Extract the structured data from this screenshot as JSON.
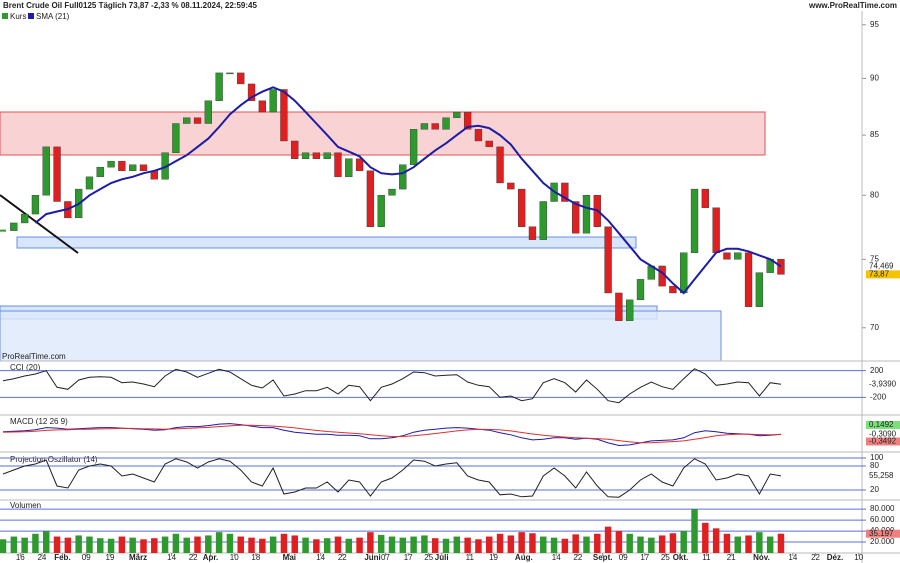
{
  "header": {
    "title": "Brent Crude Oil Full0125 Täglich 73,87 -2,33 % 08.11.2024, 22:59:45",
    "site": "www.ProRealTime.com",
    "watermark": "ProRealTime.com"
  },
  "chart_data": [
    {
      "type": "candlestick",
      "log": true,
      "ylim": [
        67.9,
        97.4
      ],
      "yticks": [
        95,
        90,
        85,
        80,
        75,
        70
      ],
      "xlim": [
        -0.28,
        79.5
      ],
      "series": [
        {
          "name": "Kurs",
          "color": "#2e9a2e",
          "down_color": "#e02020",
          "values": [
            77.2,
            77.8,
            78.5,
            80,
            84,
            79.5,
            78.2,
            80.5,
            81.5,
            82.3,
            82.8,
            82,
            82.5,
            82,
            81.3,
            83.5,
            86,
            86.5,
            86,
            88,
            90.5,
            90.5,
            89.5,
            88,
            87,
            89,
            84.5,
            83,
            83.5,
            83,
            83.5,
            81.5,
            83,
            82,
            77.5,
            80,
            80.5,
            82.5,
            85.5,
            86,
            85.5,
            86.5,
            87,
            85.5,
            84.5,
            84,
            81,
            80.5,
            77.5,
            76.5,
            79.5,
            81,
            79.5,
            77,
            80,
            77.5,
            72.5,
            70.5,
            72,
            73.5,
            74.5,
            73,
            72.5,
            75.5,
            80.5,
            79,
            75.5,
            75,
            75.5,
            71.5,
            74,
            75,
            73.87
          ]
        },
        {
          "name": "SMA (21)",
          "color": "#1c1ca8",
          "values": [
            null,
            null,
            null,
            77.8,
            78.5,
            78.7,
            78.9,
            79.3,
            80,
            80.5,
            81,
            81.3,
            81.5,
            81.8,
            82,
            82.3,
            82.8,
            83.3,
            84,
            84.7,
            85.7,
            86.8,
            87.6,
            88.3,
            88.8,
            89.2,
            88.8,
            88,
            87,
            86,
            85,
            84,
            83.6,
            83.2,
            82.3,
            81.8,
            81.7,
            81.8,
            82.3,
            83,
            83.7,
            84.3,
            85,
            85.7,
            85.8,
            85.6,
            85,
            84.2,
            83,
            82,
            81,
            80.3,
            79.8,
            79.3,
            79,
            78.8,
            78,
            77,
            76,
            75,
            74.5,
            74,
            73.2,
            72.5,
            73.5,
            74.5,
            75.5,
            75.8,
            75.8,
            75.6,
            75.3,
            75,
            74.469
          ]
        }
      ],
      "price_labels": [
        {
          "value": 74.469,
          "label": "74,469",
          "color": "#ffffff"
        },
        {
          "value": 73.87,
          "label": "73,87",
          "color": "#f5c400"
        }
      ]
    },
    {
      "type": "line",
      "title": "CCI (20)",
      "ylim": [
        -300,
        300
      ],
      "yticks": [
        200,
        -200
      ],
      "xlim": [
        -0.28,
        79.5
      ],
      "series": [
        {
          "name": "CCI",
          "color": "#222222",
          "values": [
            50,
            80,
            120,
            150,
            200,
            -50,
            -80,
            60,
            100,
            110,
            100,
            20,
            30,
            0,
            -40,
            120,
            220,
            180,
            100,
            160,
            220,
            180,
            80,
            -20,
            -60,
            60,
            -180,
            -150,
            -100,
            -100,
            -50,
            -150,
            -20,
            -40,
            -250,
            -50,
            0,
            80,
            180,
            170,
            120,
            130,
            140,
            30,
            -20,
            -40,
            -200,
            -180,
            -250,
            -220,
            20,
            80,
            20,
            -120,
            60,
            -80,
            -250,
            -280,
            -150,
            -50,
            30,
            -40,
            -80,
            80,
            230,
            150,
            -20,
            0,
            30,
            20,
            -180,
            20,
            -3.939
          ]
        }
      ],
      "price_labels": [
        {
          "value": -3.939,
          "label": "-3,9390",
          "color": "#ffffff"
        }
      ]
    },
    {
      "type": "line",
      "title": "MACD (12 26 9)",
      "ylim": [
        -3,
        2.5
      ],
      "yticks": [],
      "xlim": [
        -0.28,
        79.5
      ],
      "series": [
        {
          "name": "MACD",
          "color": "#1c1ca8",
          "values": [
            0.2,
            0.3,
            0.4,
            0.6,
            1.0,
            0.9,
            0.7,
            0.8,
            0.9,
            1.0,
            1.0,
            0.9,
            0.8,
            0.7,
            0.5,
            0.6,
            1.0,
            1.2,
            1.2,
            1.4,
            1.7,
            1.8,
            1.6,
            1.3,
            1.0,
            1.0,
            0.5,
            0.1,
            -0.1,
            -0.3,
            -0.3,
            -0.5,
            -0.5,
            -0.6,
            -1.2,
            -1.2,
            -1.0,
            -0.6,
            0.1,
            0.5,
            0.7,
            0.9,
            1.0,
            0.9,
            0.7,
            0.5,
            0,
            -0.4,
            -1.0,
            -1.4,
            -1.3,
            -1.0,
            -1.0,
            -1.3,
            -1.1,
            -1.3,
            -2.0,
            -2.5,
            -2.4,
            -2.0,
            -1.6,
            -1.5,
            -1.4,
            -1.0,
            0,
            0.4,
            0.2,
            -0.1,
            -0.2,
            -0.3,
            -0.6,
            -0.5,
            -0.309
          ]
        },
        {
          "name": "Signal",
          "color": "#e03030",
          "values": [
            0.1,
            0.15,
            0.2,
            0.3,
            0.45,
            0.55,
            0.6,
            0.65,
            0.7,
            0.75,
            0.8,
            0.85,
            0.85,
            0.8,
            0.75,
            0.7,
            0.75,
            0.85,
            0.95,
            1.05,
            1.2,
            1.35,
            1.45,
            1.45,
            1.4,
            1.3,
            1.15,
            0.95,
            0.7,
            0.45,
            0.25,
            0.1,
            -0.05,
            -0.2,
            -0.4,
            -0.6,
            -0.75,
            -0.75,
            -0.6,
            -0.4,
            -0.15,
            0.1,
            0.35,
            0.55,
            0.65,
            0.65,
            0.55,
            0.35,
            0.05,
            -0.25,
            -0.5,
            -0.7,
            -0.85,
            -1.0,
            -1.1,
            -1.15,
            -1.3,
            -1.55,
            -1.8,
            -1.95,
            -1.95,
            -1.85,
            -1.75,
            -1.6,
            -1.3,
            -0.95,
            -0.6,
            -0.4,
            -0.3,
            -0.3,
            -0.35,
            -0.4,
            -0.3492
          ]
        }
      ],
      "price_labels": [
        {
          "value": 0.1492,
          "label": "0,1492",
          "color": "#7be07b"
        },
        {
          "value": -0.309,
          "label": "-0,3090",
          "color": "#ffffff"
        },
        {
          "value": -0.3492,
          "label": "-0,3492",
          "color": "#f08080"
        }
      ]
    },
    {
      "type": "line",
      "title": "Projection Oszillator (14)",
      "ylim": [
        0,
        100
      ],
      "yticks": [
        100,
        80,
        20
      ],
      "xlim": [
        -0.28,
        79.5
      ],
      "series": [
        {
          "name": "PO",
          "color": "#222222",
          "values": [
            60,
            70,
            80,
            85,
            95,
            30,
            25,
            70,
            80,
            85,
            80,
            55,
            60,
            50,
            40,
            85,
            98,
            90,
            75,
            90,
            98,
            92,
            70,
            40,
            30,
            75,
            10,
            15,
            25,
            25,
            40,
            15,
            45,
            40,
            5,
            40,
            50,
            70,
            95,
            92,
            80,
            85,
            88,
            55,
            45,
            40,
            8,
            10,
            3,
            5,
            55,
            75,
            55,
            25,
            65,
            30,
            3,
            2,
            20,
            45,
            60,
            40,
            30,
            75,
            98,
            85,
            45,
            50,
            60,
            55,
            10,
            60,
            55.258
          ]
        }
      ],
      "price_labels": [
        {
          "value": 55.258,
          "label": "55,258",
          "color": "#ffffff"
        }
      ]
    },
    {
      "type": "bar",
      "title": "Volumen",
      "ylim": [
        0,
        93000
      ],
      "yticks": [
        {
          "value": 80000,
          "label": "80.000"
        },
        {
          "value": 60000,
          "label": "60.000"
        },
        {
          "value": 40000,
          "label": "40.000"
        },
        {
          "value": 20000,
          "label": "20.000"
        }
      ],
      "xlim": [
        -0.28,
        79.5
      ],
      "series": [
        {
          "name": "Volumen",
          "color": "#2e9a2e",
          "down_color": "#e02020",
          "values": [
            25000,
            30000,
            28000,
            35000,
            40000,
            30000,
            28000,
            32000,
            30000,
            27000,
            26000,
            30000,
            28000,
            25000,
            27000,
            30000,
            35000,
            28000,
            30000,
            32000,
            38000,
            35000,
            30000,
            28000,
            26000,
            30000,
            35000,
            32000,
            28000,
            25000,
            27000,
            30000,
            26000,
            28000,
            38000,
            33000,
            30000,
            28000,
            30000,
            32000,
            27000,
            26000,
            30000,
            28000,
            25000,
            30000,
            35000,
            32000,
            38000,
            36000,
            30000,
            28000,
            26000,
            34000,
            30000,
            35000,
            48000,
            40000,
            35000,
            30000,
            28000,
            32000,
            36000,
            40000,
            80000,
            55000,
            45000,
            35000,
            30000,
            32000,
            38000,
            30000,
            35197
          ]
        }
      ],
      "price_labels": [
        {
          "value": 35197,
          "label": "35.197",
          "color": "#f08080"
        }
      ],
      "xticks": [
        {
          "value": 1.6,
          "label": "16"
        },
        {
          "value": 3.6,
          "label": "24"
        },
        {
          "value": 5.5,
          "label": "Feb."
        },
        {
          "value": 7.7,
          "label": "09"
        },
        {
          "value": 9.9,
          "label": "19"
        },
        {
          "value": 12.5,
          "label": "März"
        },
        {
          "value": 15.6,
          "label": "14"
        },
        {
          "value": 17.6,
          "label": "22"
        },
        {
          "value": 19.2,
          "label": "Apr."
        },
        {
          "value": 21.4,
          "label": "10"
        },
        {
          "value": 23.4,
          "label": "18"
        },
        {
          "value": 26.5,
          "label": "Mai"
        },
        {
          "value": 29.4,
          "label": "14"
        },
        {
          "value": 31.4,
          "label": "22"
        },
        {
          "value": 34.2,
          "label": "Juni"
        },
        {
          "value": 35.4,
          "label": "07"
        },
        {
          "value": 37.5,
          "label": "17"
        },
        {
          "value": 39.4,
          "label": "25"
        },
        {
          "value": 40.6,
          "label": "Juli"
        },
        {
          "value": 43.2,
          "label": "11"
        },
        {
          "value": 45.4,
          "label": "19"
        },
        {
          "value": 48.2,
          "label": "Aug."
        },
        {
          "value": 51.2,
          "label": "14"
        },
        {
          "value": 53.2,
          "label": "22"
        },
        {
          "value": 55.5,
          "label": "Sept."
        },
        {
          "value": 57.4,
          "label": "09"
        },
        {
          "value": 59.4,
          "label": "17"
        },
        {
          "value": 61.3,
          "label": "25"
        },
        {
          "value": 62.7,
          "label": "Okt."
        },
        {
          "value": 65.1,
          "label": "11"
        },
        {
          "value": 67.4,
          "label": "21"
        },
        {
          "value": 70.2,
          "label": "Nov."
        },
        {
          "value": 73.1,
          "label": "14"
        },
        {
          "value": 75.2,
          "label": "22"
        },
        {
          "value": 77,
          "label": "Dez."
        },
        {
          "value": 79.2,
          "label": "10"
        }
      ]
    }
  ]
}
